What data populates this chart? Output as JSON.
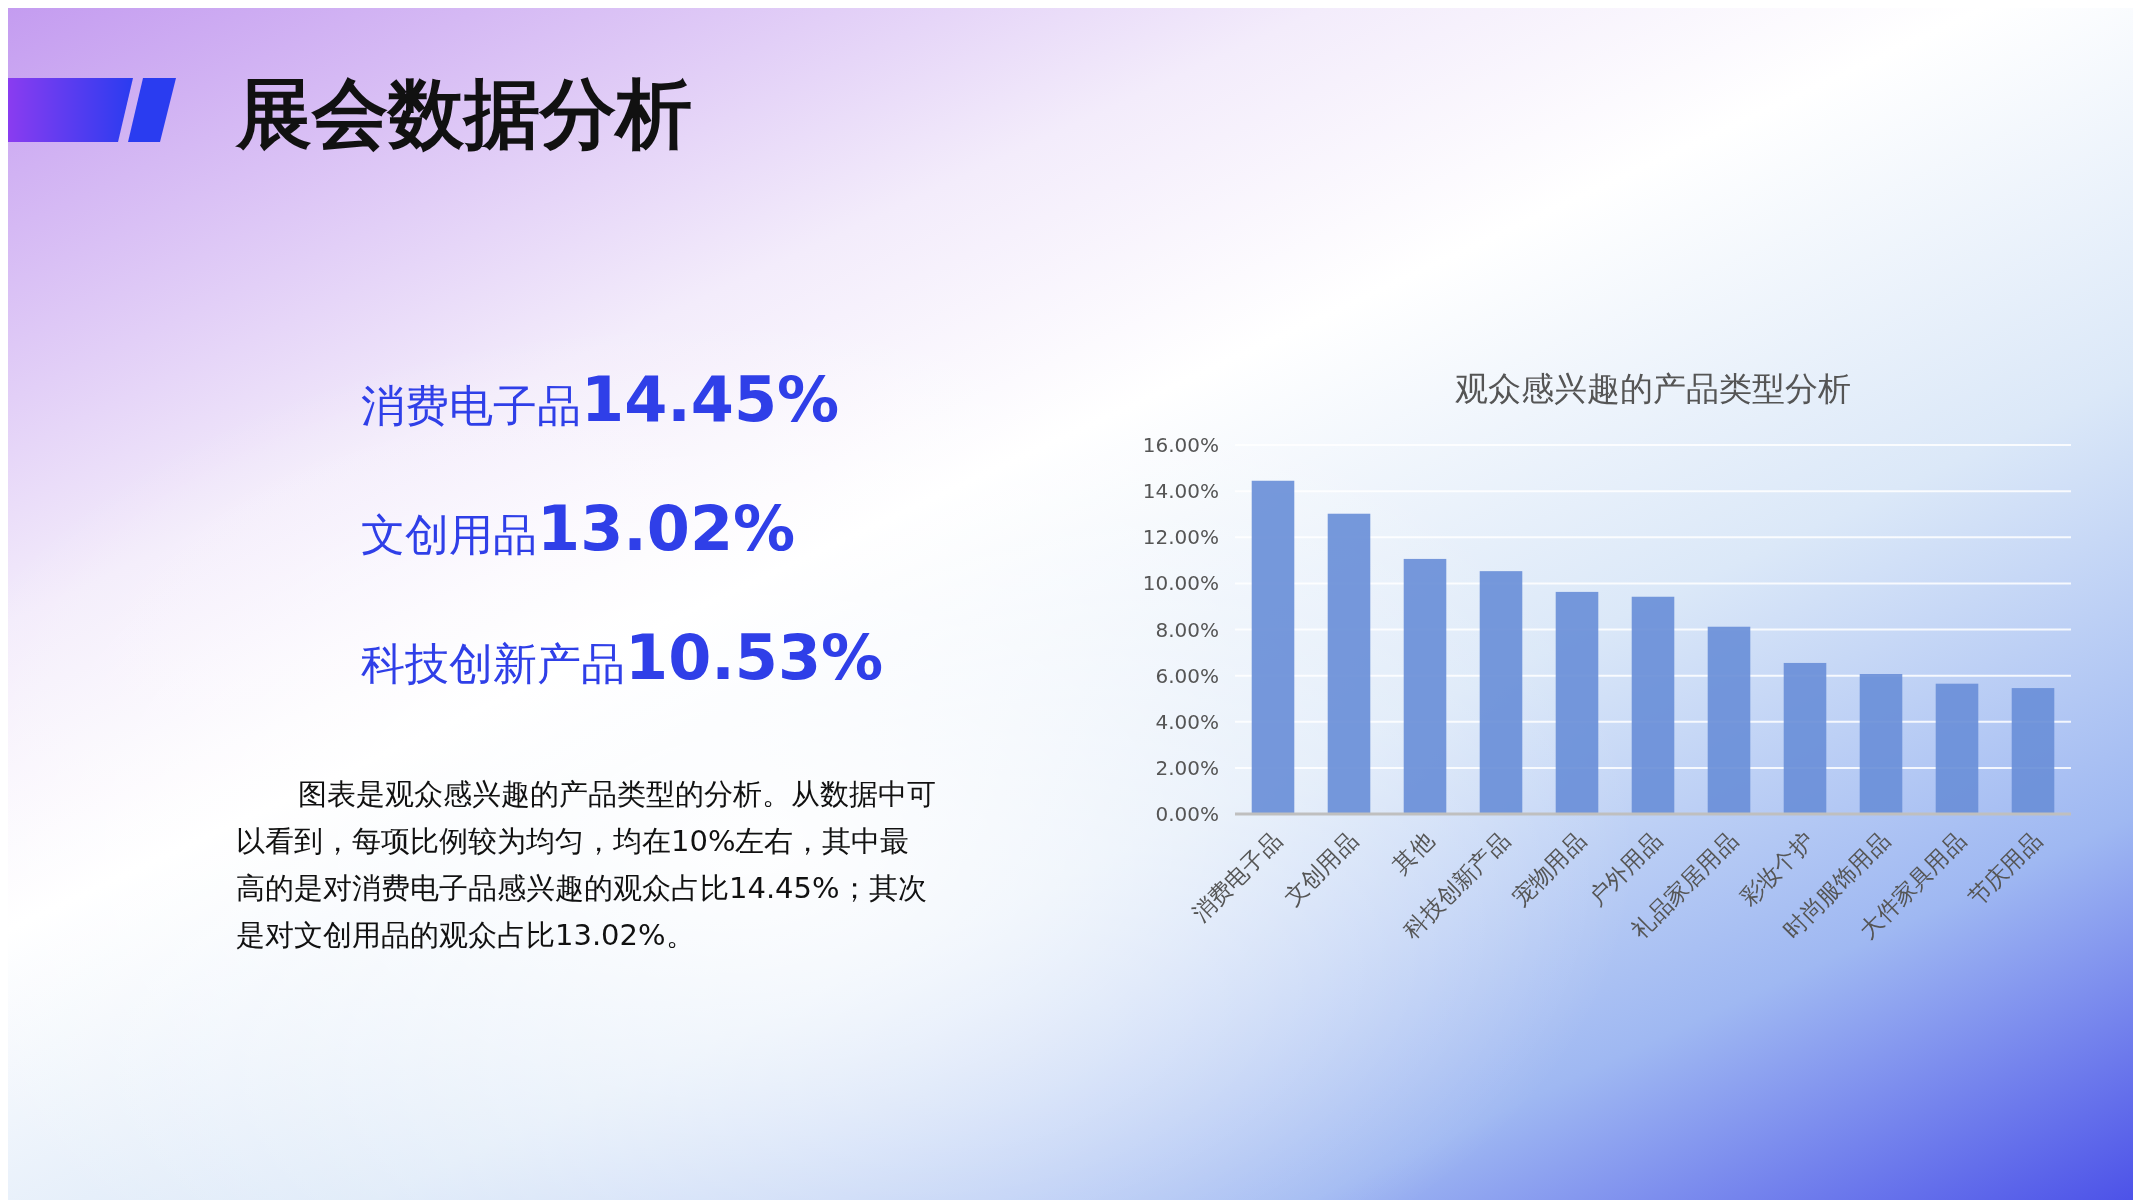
{
  "chart_data": [
    {
      "type": "other",
      "title": "展会数据分析",
      "annotations": [
        "消费电子品14.45%",
        "文创用品13.02%",
        "科技创新产品10.53%",
        "图表是观众感兴趣的产品类型的分析。从数据中可以看到，每项比例较为均匀，均在10%左右，其中最高的是对消费电子品感兴趣的观众占比14.45%；其次是对文创用品的观众占比13.02%。"
      ]
    },
    {
      "type": "bar",
      "title": "观众感兴趣的产品类型分析",
      "categories": [
        "消费电子品",
        "文创用品",
        "其他",
        "科技创新产品",
        "宠物用品",
        "户外用品",
        "礼品家居用品",
        "彩妆个护",
        "时尚服饰用品",
        "大件家具用品",
        "节庆用品"
      ],
      "values": [
        14.45,
        13.02,
        11.06,
        10.53,
        9.63,
        9.42,
        8.12,
        6.55,
        6.07,
        5.65,
        5.46
      ],
      "color": "#6a8fd8",
      "ylim": [
        0,
        16
      ],
      "yticks": [
        {
          "value": 0,
          "label": "0.00%"
        },
        {
          "value": 2,
          "label": "2.00%"
        },
        {
          "value": 4,
          "label": "4.00%"
        },
        {
          "value": 6,
          "label": "6.00%"
        },
        {
          "value": 8,
          "label": "8.00%"
        },
        {
          "value": 10,
          "label": "10.00%"
        },
        {
          "value": 12,
          "label": "12.00%"
        },
        {
          "value": 14,
          "label": "14.00%"
        },
        {
          "value": 16,
          "label": "16.00%"
        }
      ],
      "grid": "y"
    }
  ]
}
